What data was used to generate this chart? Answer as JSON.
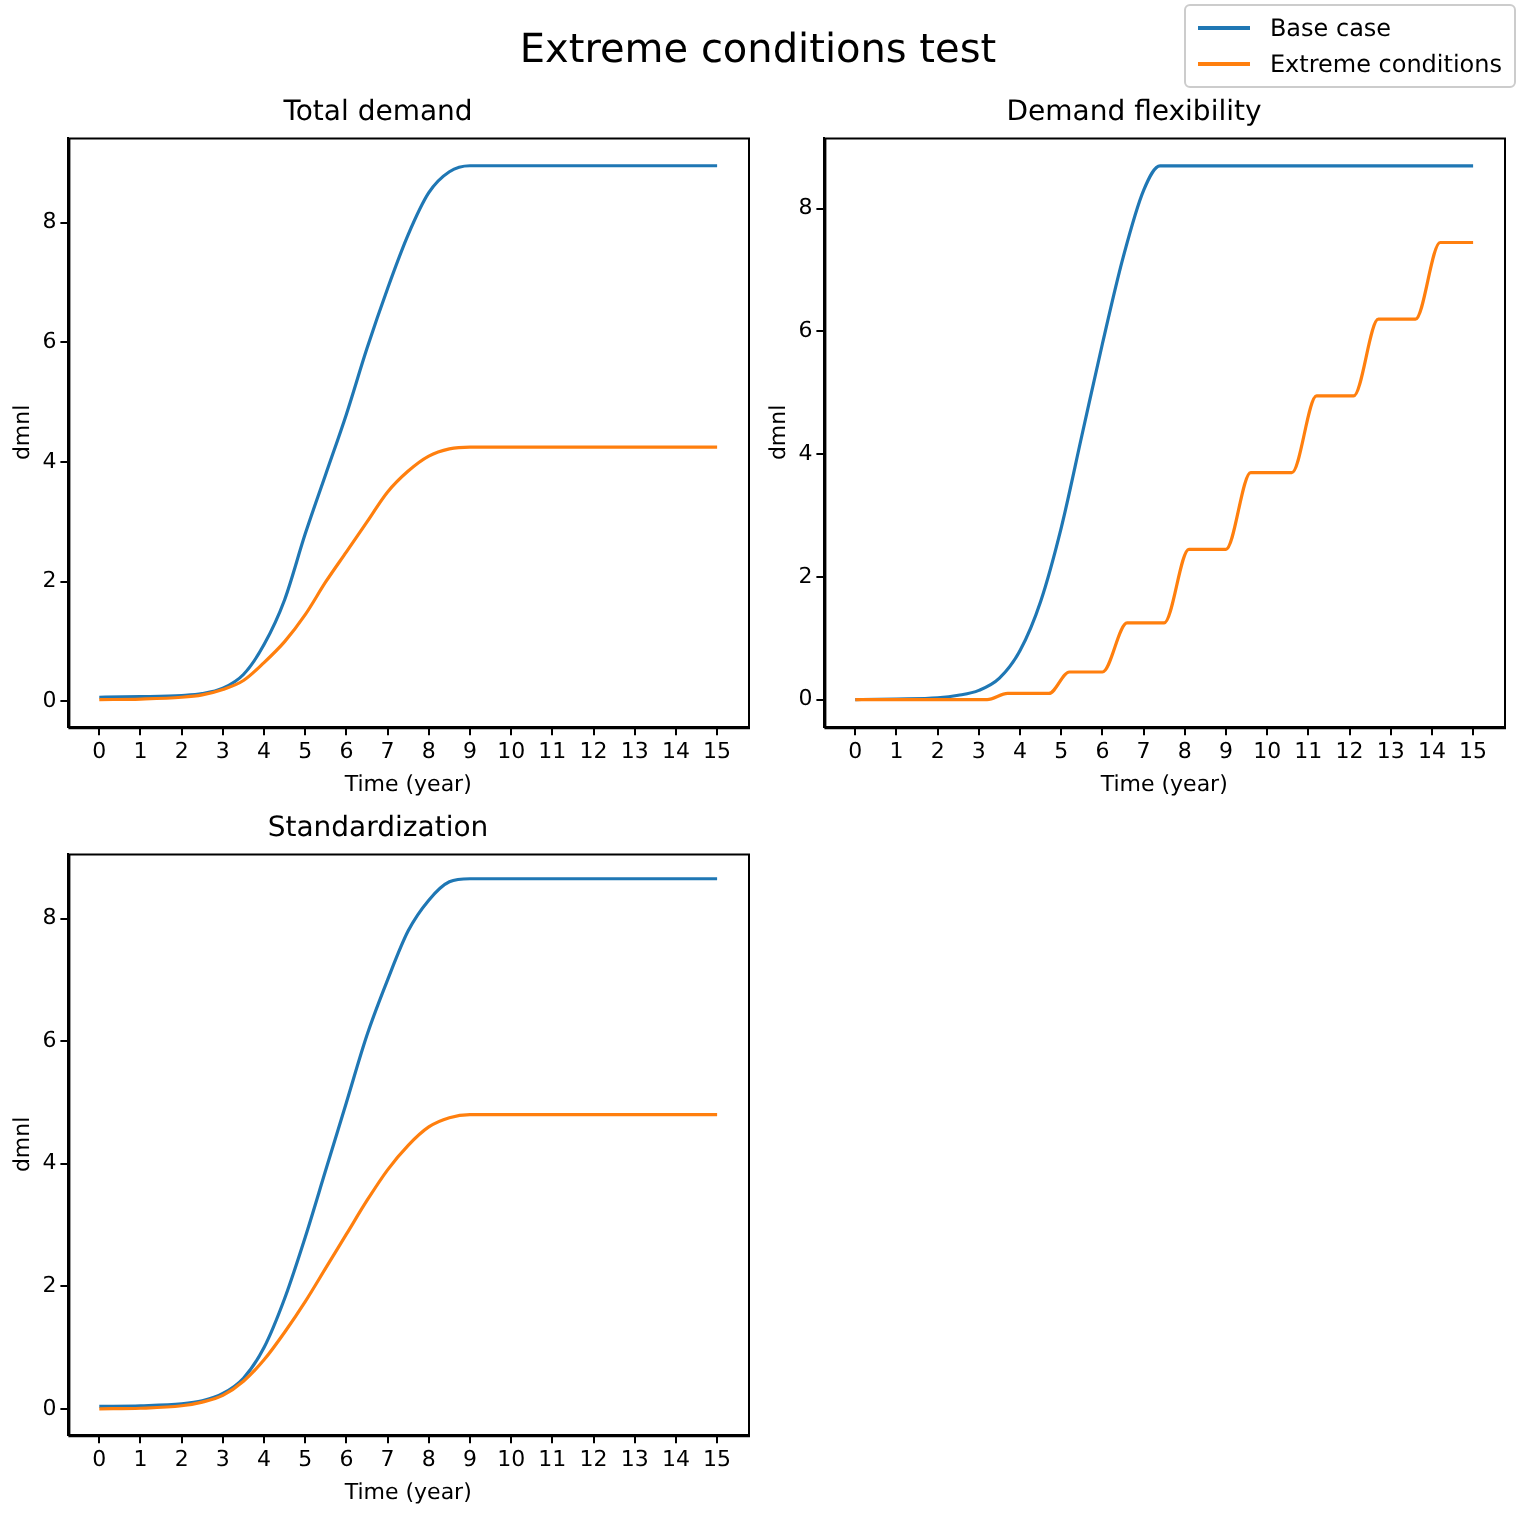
{
  "chart_data": [
    {
      "type": "line",
      "title": "Total demand",
      "xlabel": "Time (year)",
      "ylabel": "dmnl",
      "annotations": [
        "Extreme conditions test"
      ],
      "xlim": [
        -0.75,
        15.75
      ],
      "ylim": [
        -0.43,
        9.42
      ],
      "xticks": [
        0,
        1,
        2,
        3,
        4,
        5,
        6,
        7,
        8,
        9,
        10,
        11,
        12,
        13,
        14,
        15
      ],
      "yticks": [
        0,
        2,
        4,
        6,
        8
      ],
      "grid": false,
      "x": [
        0,
        1,
        2,
        2.5,
        3,
        3.5,
        4,
        4.5,
        5,
        5.5,
        6,
        6.5,
        7,
        7.5,
        8,
        8.5,
        9,
        15
      ],
      "series": [
        {
          "color": "#1f77b4",
          "values": [
            0.07,
            0.08,
            0.1,
            0.13,
            0.22,
            0.45,
            0.95,
            1.7,
            2.8,
            3.8,
            4.8,
            5.9,
            6.9,
            7.8,
            8.5,
            8.85,
            8.95,
            8.95
          ]
        },
        {
          "color": "#ff7f0e",
          "values": [
            0.03,
            0.04,
            0.07,
            0.11,
            0.2,
            0.35,
            0.65,
            1.0,
            1.45,
            2.0,
            2.5,
            3.0,
            3.5,
            3.85,
            4.1,
            4.22,
            4.25,
            4.25
          ]
        }
      ]
    },
    {
      "type": "line",
      "title": "Demand flexibility",
      "xlabel": "Time (year)",
      "ylabel": "dmnl",
      "legend": "top right",
      "xlim": [
        -0.75,
        15.75
      ],
      "ylim": [
        -0.45,
        9.16
      ],
      "xticks": [
        0,
        1,
        2,
        3,
        4,
        5,
        6,
        7,
        8,
        9,
        10,
        11,
        12,
        13,
        14,
        15
      ],
      "yticks": [
        0,
        2,
        4,
        6,
        8
      ],
      "grid": false,
      "series": [
        {
          "name": "Base case",
          "color": "#1f77b4",
          "x": [
            0,
            1,
            2,
            2.5,
            3,
            3.5,
            4,
            4.5,
            5,
            5.5,
            6,
            6.5,
            7,
            7.4,
            15
          ],
          "values": [
            0,
            0.01,
            0.03,
            0.07,
            0.15,
            0.35,
            0.8,
            1.6,
            2.8,
            4.3,
            5.8,
            7.2,
            8.3,
            8.7,
            8.7
          ]
        },
        {
          "name": "Extreme conditions",
          "color": "#ff7f0e",
          "x": [
            0,
            3.2,
            3.7,
            4.7,
            5.2,
            6.0,
            6.6,
            7.5,
            8.1,
            9.0,
            9.6,
            10.6,
            11.2,
            12.1,
            12.7,
            13.6,
            14.2,
            15
          ],
          "values": [
            0,
            0,
            0.1,
            0.1,
            0.45,
            0.45,
            1.25,
            1.25,
            2.45,
            2.45,
            3.7,
            3.7,
            4.95,
            4.95,
            6.2,
            6.2,
            7.45,
            7.45
          ]
        }
      ]
    },
    {
      "type": "line",
      "title": "Standardization",
      "xlabel": "Time (year)",
      "ylabel": "dmnl",
      "xlim": [
        -0.75,
        15.75
      ],
      "ylim": [
        -0.43,
        9.06
      ],
      "xticks": [
        0,
        1,
        2,
        3,
        4,
        5,
        6,
        7,
        8,
        9,
        10,
        11,
        12,
        13,
        14,
        15
      ],
      "yticks": [
        0,
        2,
        4,
        6,
        8
      ],
      "grid": false,
      "x": [
        0,
        1,
        2,
        2.5,
        3,
        3.5,
        4,
        4.5,
        5,
        5.5,
        6,
        6.5,
        7,
        7.5,
        8,
        8.5,
        9,
        15
      ],
      "series": [
        {
          "color": "#1f77b4",
          "values": [
            0.04,
            0.05,
            0.08,
            0.13,
            0.25,
            0.5,
            1.0,
            1.8,
            2.8,
            3.9,
            5.0,
            6.1,
            7.0,
            7.8,
            8.3,
            8.6,
            8.65,
            8.65
          ]
        },
        {
          "color": "#ff7f0e",
          "values": [
            0.0,
            0.01,
            0.05,
            0.11,
            0.22,
            0.45,
            0.8,
            1.25,
            1.75,
            2.3,
            2.85,
            3.4,
            3.9,
            4.3,
            4.6,
            4.75,
            4.8,
            4.8
          ]
        }
      ]
    }
  ]
}
